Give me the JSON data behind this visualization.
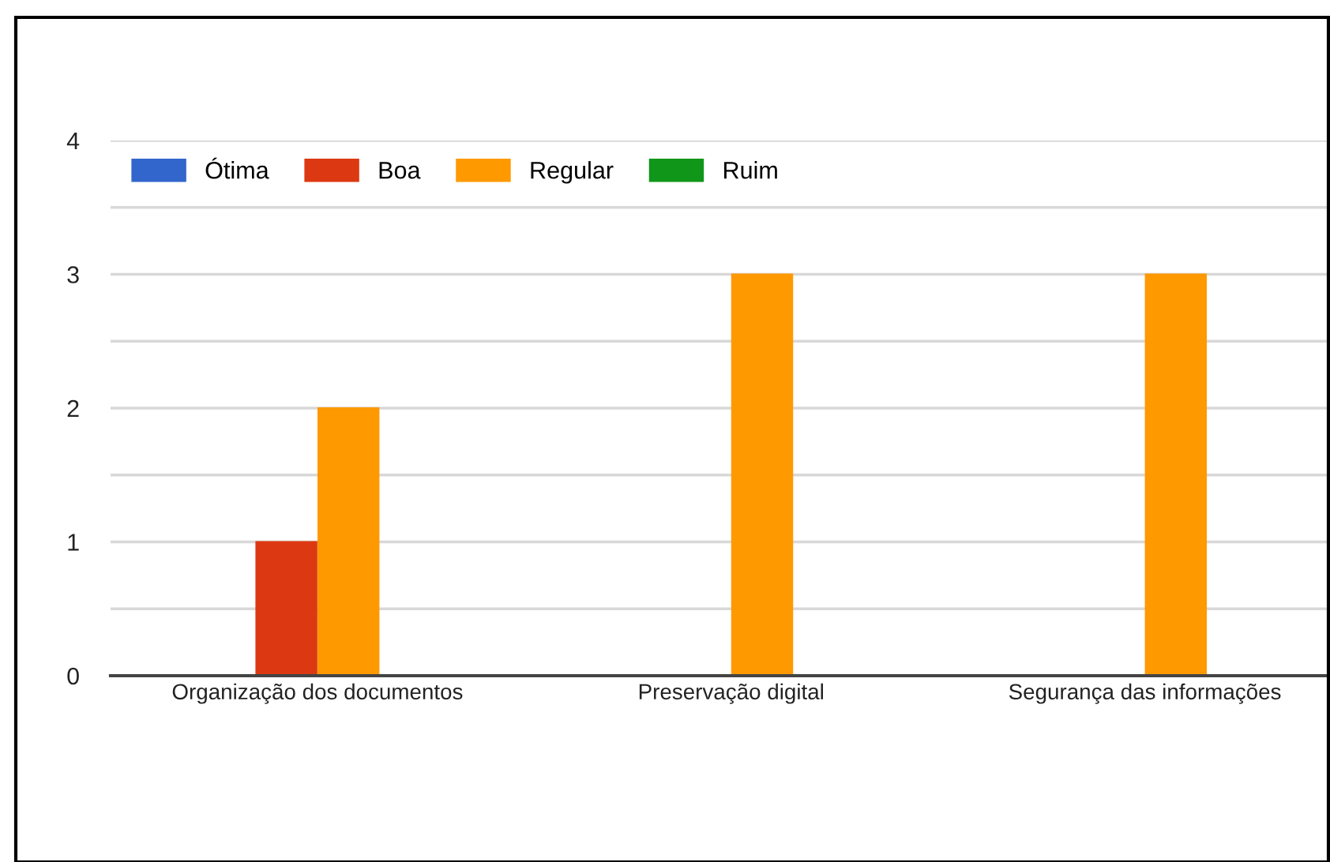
{
  "chart_data": {
    "type": "bar",
    "categories": [
      "Organização dos documentos",
      "Preservação digital",
      "Segurança das informações"
    ],
    "series": [
      {
        "name": "Ótima",
        "color": "#3366cc",
        "values": [
          0,
          0,
          0
        ]
      },
      {
        "name": "Boa",
        "color": "#dc3912",
        "values": [
          1,
          0,
          0
        ]
      },
      {
        "name": "Regular",
        "color": "#ff9900",
        "values": [
          2,
          3,
          3
        ]
      },
      {
        "name": "Ruim",
        "color": "#109618",
        "values": [
          0,
          0,
          0
        ]
      }
    ],
    "ylim": [
      0,
      4
    ],
    "yticks": [
      0,
      {
        "value": 0.5,
        "label": null
      },
      1,
      {
        "value": 1.5,
        "label": null
      },
      2,
      {
        "value": 2.5,
        "label": null
      },
      3,
      {
        "value": 3.5,
        "label": null
      },
      4
    ],
    "grid": "y",
    "legend": "top left"
  }
}
